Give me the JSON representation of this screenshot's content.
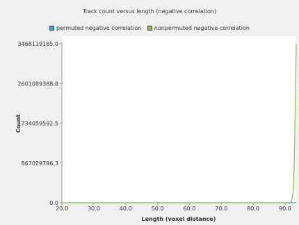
{
  "chart_data": {
    "type": "line",
    "title": "Track count versus length (negative correlation)",
    "xlabel": "Length (voxel distance)",
    "ylabel": "Count",
    "xlim": [
      20.0,
      93.5
    ],
    "ylim": [
      0.0,
      3468119185.0
    ],
    "x_ticks": [
      "20.0",
      "30.0",
      "40.0",
      "50.0",
      "60.0",
      "70.0",
      "80.0",
      "90.0"
    ],
    "y_ticks": [
      "0.0",
      "867029796.3",
      "1734059592.5",
      "2601089388.8",
      "3468119185.0"
    ],
    "legend_position": "top",
    "grid": false,
    "series": [
      {
        "name": "permuted negative correlation",
        "color": "#3b9fd6",
        "x": [
          20.0,
          93.5
        ],
        "y": [
          0,
          0
        ]
      },
      {
        "name": "nonpermuted negative correlation",
        "color": "#8cbf4a",
        "x": [
          20.0,
          30.0,
          40.0,
          50.0,
          60.0,
          70.0,
          80.0,
          90.0,
          92.0,
          92.7,
          93.0,
          93.3,
          93.5
        ],
        "y": [
          0,
          0,
          0,
          0,
          0,
          0,
          0,
          0,
          10000000,
          300000000,
          1200000000,
          2600000000,
          3468119185
        ]
      }
    ]
  }
}
